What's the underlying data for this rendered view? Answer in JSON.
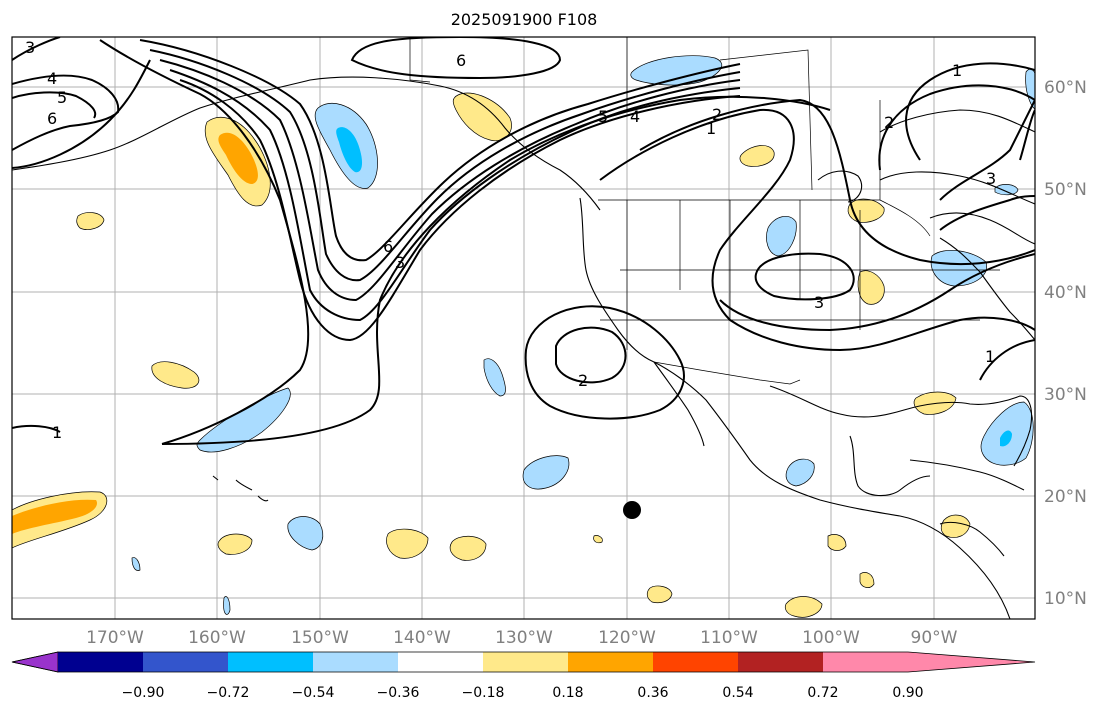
{
  "title": "2025091900 F108",
  "map": {
    "lon_range": [
      -180,
      -80
    ],
    "lat_range": [
      8,
      65
    ],
    "lon_labels": [
      "170°W",
      "160°W",
      "150°W",
      "140°W",
      "130°W",
      "120°W",
      "110°W",
      "100°W",
      "90°W"
    ],
    "lat_labels": [
      "60°N",
      "50°N",
      "40°N",
      "30°N",
      "20°N",
      "10°N"
    ],
    "contour_labels": [
      "3",
      "4",
      "5",
      "6",
      "6",
      "5",
      "4",
      "2",
      "1",
      "1",
      "2",
      "3",
      "6",
      "3",
      "3",
      "2",
      "1",
      "1"
    ],
    "marker": {
      "lon": -119.5,
      "lat": 18.5,
      "color": "#000000"
    }
  },
  "colorbar": {
    "tick_labels": [
      "−0.90",
      "−0.72",
      "−0.54",
      "−0.36",
      "−0.18",
      "0.18",
      "0.36",
      "0.54",
      "0.72",
      "0.90"
    ],
    "colors": [
      "#9933cc",
      "#000090",
      "#3355cc",
      "#00bfff",
      "#aadcff",
      "#ffffff",
      "#ffe98a",
      "#ffa500",
      "#ff4400",
      "#b22222",
      "#ff88aa"
    ]
  }
}
